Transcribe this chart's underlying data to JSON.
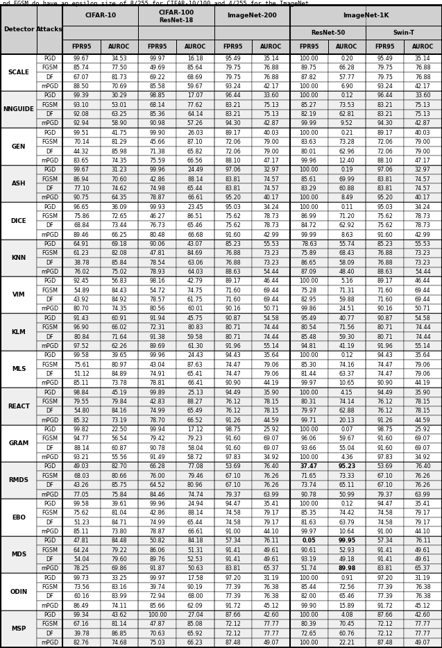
{
  "title_text": "nd FGSM do have an epsilon size of 8/255 for CIFAR-10/100 and 4/255 for the ImageNet.",
  "col_headers": [
    "FPR95",
    "AUROC",
    "FPR95",
    "AUROC",
    "FPR95",
    "AUROC",
    "FPR95",
    "AUROC",
    "FPR95",
    "AUROC"
  ],
  "row_groups": [
    "SCALE",
    "NNGUIDE",
    "GEN",
    "ASH",
    "DICE",
    "KNN",
    "VIM",
    "KLM",
    "MLS",
    "REACT",
    "GRAM",
    "RMDS",
    "EBO",
    "MDS",
    "ODIN",
    "MSP"
  ],
  "attacks": [
    "PGD",
    "FGSM",
    "DF",
    "mPGD"
  ],
  "data": {
    "SCALE": {
      "PGD": [
        99.67,
        34.53,
        99.97,
        16.18,
        95.49,
        35.14,
        100.0,
        0.2,
        95.49,
        35.14
      ],
      "FGSM": [
        85.74,
        77.5,
        49.69,
        85.64,
        79.75,
        76.88,
        89.75,
        66.28,
        79.75,
        76.88
      ],
      "DF": [
        67.07,
        81.73,
        69.22,
        68.69,
        79.75,
        76.88,
        87.82,
        57.77,
        79.75,
        76.88
      ],
      "mPGD": [
        88.5,
        70.69,
        85.58,
        59.67,
        93.24,
        42.17,
        100.0,
        6.9,
        93.24,
        42.17
      ]
    },
    "NNGUIDE": {
      "PGD": [
        99.39,
        30.29,
        98.85,
        17.07,
        96.44,
        33.6,
        100.0,
        0.12,
        96.44,
        33.6
      ],
      "FGSM": [
        93.1,
        53.01,
        68.14,
        77.62,
        83.21,
        75.13,
        85.27,
        73.53,
        83.21,
        75.13
      ],
      "DF": [
        92.08,
        63.25,
        85.36,
        64.14,
        83.21,
        75.13,
        82.19,
        62.81,
        83.21,
        75.13
      ],
      "mPGD": [
        92.94,
        58.9,
        90.98,
        57.26,
        94.3,
        42.87,
        99.99,
        9.52,
        94.3,
        42.87
      ]
    },
    "GEN": {
      "PGD": [
        99.51,
        41.75,
        99.9,
        26.03,
        89.17,
        40.03,
        100.0,
        0.21,
        89.17,
        40.03
      ],
      "FGSM": [
        70.14,
        81.29,
        45.66,
        87.1,
        72.06,
        79.0,
        83.63,
        73.28,
        72.06,
        79.0
      ],
      "DF": [
        44.32,
        85.98,
        71.38,
        65.82,
        72.06,
        79.0,
        80.01,
        62.96,
        72.06,
        79.0
      ],
      "mPGD": [
        83.65,
        74.35,
        75.59,
        66.56,
        88.1,
        47.17,
        99.96,
        12.4,
        88.1,
        47.17
      ]
    },
    "ASH": {
      "PGD": [
        99.67,
        31.23,
        99.96,
        24.49,
        97.06,
        32.97,
        100.0,
        0.19,
        97.06,
        32.97
      ],
      "FGSM": [
        86.94,
        70.6,
        42.86,
        88.14,
        83.81,
        74.57,
        85.61,
        69.99,
        83.81,
        74.57
      ],
      "DF": [
        77.1,
        74.62,
        74.98,
        65.44,
        83.81,
        74.57,
        83.29,
        60.88,
        83.81,
        74.57
      ],
      "mPGD": [
        90.75,
        64.35,
        78.87,
        66.61,
        95.2,
        40.17,
        100.0,
        8.49,
        95.2,
        40.17
      ]
    },
    "DICE": {
      "PGD": [
        96.65,
        36.09,
        99.93,
        23.45,
        95.03,
        34.24,
        100.0,
        0.11,
        95.03,
        34.24
      ],
      "FGSM": [
        75.86,
        72.65,
        46.27,
        86.51,
        75.62,
        78.73,
        86.99,
        71.2,
        75.62,
        78.73
      ],
      "DF": [
        68.84,
        73.44,
        76.73,
        65.46,
        75.62,
        78.73,
        84.72,
        62.92,
        75.62,
        78.73
      ],
      "mPGD": [
        89.46,
        66.25,
        80.48,
        66.68,
        91.6,
        42.99,
        99.99,
        8.63,
        91.6,
        42.99
      ]
    },
    "KNN": {
      "PGD": [
        64.91,
        69.18,
        90.06,
        43.07,
        85.23,
        55.53,
        78.63,
        55.74,
        85.23,
        55.53
      ],
      "FGSM": [
        61.23,
        82.08,
        47.81,
        84.69,
        76.88,
        73.23,
        75.89,
        68.43,
        76.88,
        73.23
      ],
      "DF": [
        38.78,
        85.84,
        78.54,
        63.06,
        76.88,
        73.23,
        86.65,
        58.09,
        76.88,
        73.23
      ],
      "mPGD": [
        76.02,
        75.02,
        78.93,
        64.03,
        88.63,
        54.44,
        87.09,
        48.4,
        88.63,
        54.44
      ]
    },
    "VIM": {
      "PGD": [
        92.45,
        56.83,
        98.16,
        42.79,
        89.17,
        46.44,
        100.0,
        5.16,
        89.17,
        46.44
      ],
      "FGSM": [
        54.89,
        84.43,
        54.72,
        74.75,
        71.6,
        69.44,
        75.28,
        71.31,
        71.6,
        69.44
      ],
      "DF": [
        43.92,
        84.92,
        78.57,
        61.75,
        71.6,
        69.44,
        82.95,
        59.88,
        71.6,
        69.44
      ],
      "mPGD": [
        80.7,
        74.35,
        80.56,
        60.01,
        90.16,
        50.71,
        99.86,
        24.51,
        90.16,
        50.71
      ]
    },
    "KLM": {
      "PGD": [
        91.43,
        60.91,
        91.94,
        45.75,
        90.87,
        54.58,
        95.49,
        40.77,
        90.87,
        54.58
      ],
      "FGSM": [
        96.9,
        66.02,
        72.31,
        80.83,
        80.71,
        74.44,
        80.54,
        71.56,
        80.71,
        74.44
      ],
      "DF": [
        80.84,
        71.64,
        91.38,
        59.58,
        80.71,
        74.44,
        85.48,
        59.3,
        80.71,
        74.44
      ],
      "mPGD": [
        97.52,
        62.26,
        89.69,
        61.3,
        91.96,
        55.14,
        94.81,
        41.19,
        91.96,
        55.14
      ]
    },
    "MLS": {
      "PGD": [
        99.58,
        39.65,
        99.96,
        24.43,
        94.43,
        35.64,
        100.0,
        0.12,
        94.43,
        35.64
      ],
      "FGSM": [
        75.61,
        80.97,
        43.04,
        87.63,
        74.47,
        79.06,
        85.3,
        74.16,
        74.47,
        79.06
      ],
      "DF": [
        51.12,
        84.89,
        74.91,
        65.41,
        74.47,
        79.06,
        81.44,
        63.37,
        74.47,
        79.06
      ],
      "mPGD": [
        85.11,
        73.78,
        78.81,
        66.41,
        90.9,
        44.19,
        99.97,
        10.65,
        90.9,
        44.19
      ]
    },
    "REACT": {
      "PGD": [
        98.84,
        45.19,
        99.89,
        25.13,
        94.49,
        35.9,
        100.0,
        4.15,
        94.49,
        35.9
      ],
      "FGSM": [
        79.55,
        79.84,
        42.83,
        88.27,
        76.12,
        78.15,
        80.31,
        74.14,
        76.12,
        78.15
      ],
      "DF": [
        54.8,
        84.16,
        74.99,
        65.49,
        76.12,
        78.15,
        79.97,
        62.88,
        76.12,
        78.15
      ],
      "mPGD": [
        85.32,
        73.19,
        78.7,
        66.52,
        91.26,
        44.59,
        99.71,
        20.13,
        91.26,
        44.59
      ]
    },
    "GRAM": {
      "PGD": [
        99.82,
        22.5,
        99.94,
        17.12,
        98.75,
        25.92,
        100.0,
        0.07,
        98.75,
        25.92
      ],
      "FGSM": [
        94.77,
        56.54,
        79.42,
        79.23,
        91.6,
        69.07,
        96.06,
        59.67,
        91.6,
        69.07
      ],
      "DF": [
        88.14,
        60.87,
        90.78,
        58.04,
        91.6,
        69.07,
        93.66,
        55.04,
        91.6,
        69.07
      ],
      "mPGD": [
        93.21,
        55.56,
        91.49,
        58.72,
        97.83,
        34.92,
        100.0,
        4.36,
        97.83,
        34.92
      ]
    },
    "RMDS": {
      "PGD": [
        49.03,
        82.7,
        66.28,
        77.08,
        53.69,
        76.4,
        37.47,
        95.23,
        53.69,
        76.4
      ],
      "FGSM": [
        68.03,
        80.66,
        76.0,
        79.46,
        67.1,
        76.26,
        71.65,
        73.33,
        67.1,
        76.26
      ],
      "DF": [
        43.26,
        85.75,
        64.52,
        80.96,
        67.1,
        76.26,
        73.74,
        65.11,
        67.1,
        76.26
      ],
      "mPGD": [
        77.05,
        75.84,
        84.46,
        74.74,
        79.37,
        63.99,
        90.78,
        50.99,
        79.37,
        63.99
      ]
    },
    "EBO": {
      "PGD": [
        99.58,
        39.61,
        99.96,
        24.94,
        94.47,
        35.41,
        100.0,
        0.12,
        94.47,
        35.41
      ],
      "FGSM": [
        75.62,
        81.04,
        42.86,
        88.14,
        74.58,
        79.17,
        85.35,
        74.42,
        74.58,
        79.17
      ],
      "DF": [
        51.23,
        84.71,
        74.99,
        65.44,
        74.58,
        79.17,
        81.63,
        63.79,
        74.58,
        79.17
      ],
      "mPGD": [
        85.11,
        73.8,
        78.87,
        66.61,
        91.0,
        44.1,
        99.97,
        10.64,
        91.0,
        44.1
      ]
    },
    "MDS": {
      "PGD": [
        47.81,
        84.48,
        50.82,
        84.18,
        57.34,
        76.11,
        0.05,
        99.95,
        57.34,
        76.11
      ],
      "FGSM": [
        64.24,
        79.22,
        86.06,
        51.31,
        91.41,
        49.61,
        90.61,
        52.93,
        91.41,
        49.61
      ],
      "DF": [
        54.04,
        79.6,
        89.76,
        52.53,
        91.41,
        49.61,
        93.19,
        49.18,
        91.41,
        49.61
      ],
      "mPGD": [
        78.25,
        69.86,
        91.87,
        50.63,
        83.81,
        65.37,
        51.74,
        89.98,
        83.81,
        65.37
      ]
    },
    "ODIN": {
      "PGD": [
        99.73,
        33.25,
        99.97,
        17.58,
        97.2,
        31.19,
        100.0,
        0.91,
        97.2,
        31.19
      ],
      "FGSM": [
        73.56,
        83.16,
        39.74,
        90.19,
        77.39,
        76.38,
        85.44,
        72.56,
        77.39,
        76.38
      ],
      "DF": [
        60.16,
        83.99,
        72.94,
        68.0,
        77.39,
        76.38,
        82.0,
        65.46,
        77.39,
        76.38
      ],
      "mPGD": [
        86.49,
        74.11,
        85.66,
        62.09,
        91.72,
        45.12,
        99.9,
        15.89,
        91.72,
        45.12
      ]
    },
    "MSP": {
      "PGD": [
        99.34,
        43.62,
        100.0,
        27.04,
        87.66,
        42.6,
        100.0,
        4.08,
        87.66,
        42.6
      ],
      "FGSM": [
        67.16,
        81.14,
        47.87,
        85.08,
        72.12,
        77.77,
        80.39,
        70.45,
        72.12,
        77.77
      ],
      "DF": [
        39.78,
        86.85,
        70.63,
        65.92,
        72.12,
        77.77,
        72.65,
        60.76,
        72.12,
        77.77
      ],
      "mPGD": [
        82.76,
        74.68,
        75.03,
        66.23,
        87.48,
        49.07,
        100.0,
        22.21,
        87.48,
        49.07
      ]
    }
  },
  "bold_spec": {
    "RMDS": {
      "0": [
        6,
        7
      ]
    },
    "MDS": {
      "0": [
        6,
        7
      ],
      "3": [
        7
      ]
    }
  },
  "header_bg": "#d0d0d0",
  "white": "#ffffff",
  "light_gray": "#efefef"
}
